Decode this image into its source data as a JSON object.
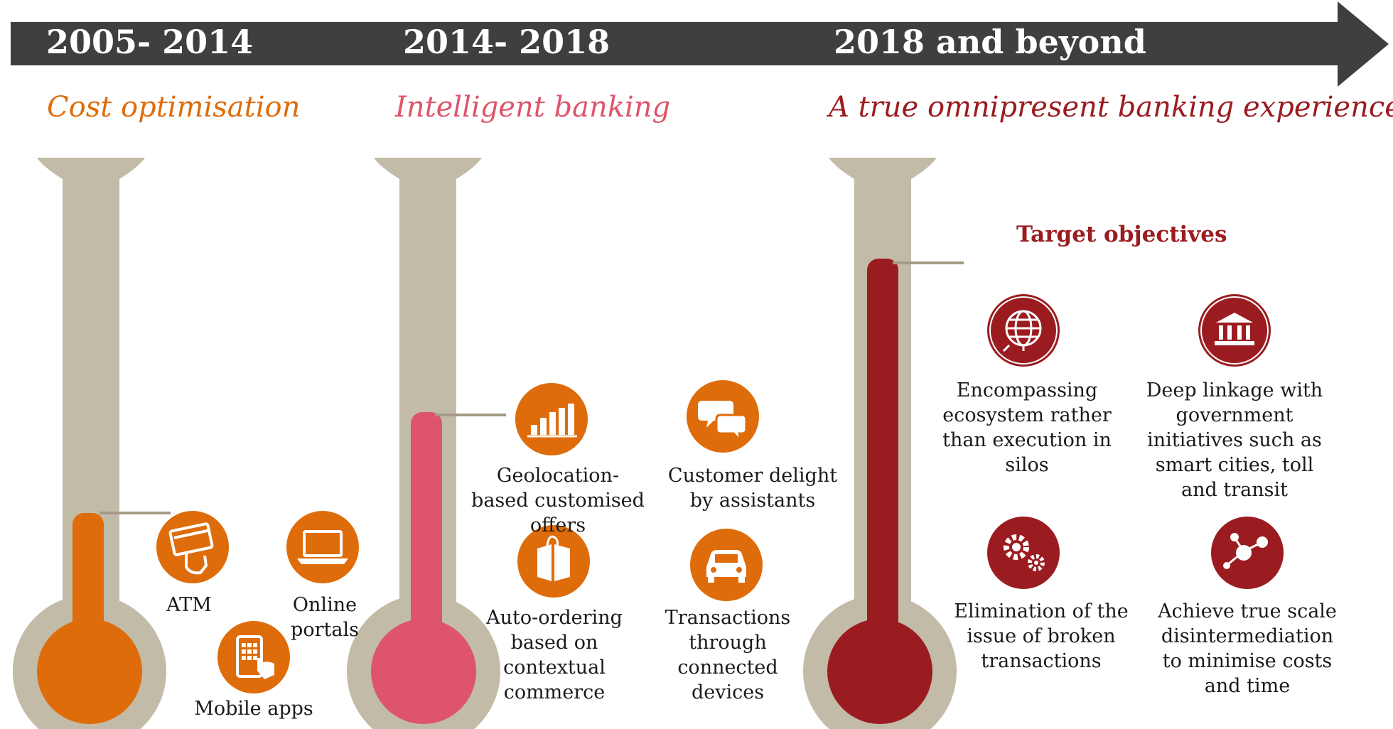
{
  "timeline": {
    "periods": [
      {
        "years": "2005- 2014",
        "title": "Cost optimisation",
        "color": "#df6c0a"
      },
      {
        "years": "2014- 2018",
        "title": "Intelligent banking",
        "color": "#de546b"
      },
      {
        "years": "2018 and beyond",
        "title": "A true omnipresent banking experience",
        "color": "#9b1c20"
      }
    ]
  },
  "phase1": {
    "items": [
      {
        "label": "ATM",
        "icon": "atm-card-icon"
      },
      {
        "label": "Online portals",
        "icon": "laptop-icon"
      },
      {
        "label": "Mobile apps",
        "icon": "mobile-touch-icon"
      }
    ]
  },
  "phase2": {
    "items": [
      {
        "label": "Geolocation-based customised offers",
        "icon": "bar-chart-icon"
      },
      {
        "label": "Customer delight by assistants",
        "icon": "chat-bubbles-icon"
      },
      {
        "label": "Auto-ordering based on contextual commerce",
        "icon": "shopping-bag-icon"
      },
      {
        "label": "Transactions through connected devices",
        "icon": "car-icon"
      }
    ]
  },
  "phase3": {
    "heading": "Target objectives",
    "items": [
      {
        "label": "Encompassing ecosystem rather than execution in silos",
        "icon": "globe-icon"
      },
      {
        "label": "Deep linkage with government initiatives such as smart cities, toll and transit",
        "icon": "government-building-icon"
      },
      {
        "label": "Elimination of the issue of broken transactions",
        "icon": "gears-icon"
      },
      {
        "label": "Achieve true scale disintermediation to minimise costs and time",
        "icon": "network-nodes-icon"
      }
    ]
  },
  "colors": {
    "arrow": "#3f3f3f",
    "tube": "#c2bba8",
    "phase1": "#df6c0a",
    "phase2": "#de546b",
    "phase3": "#9b1c20"
  }
}
